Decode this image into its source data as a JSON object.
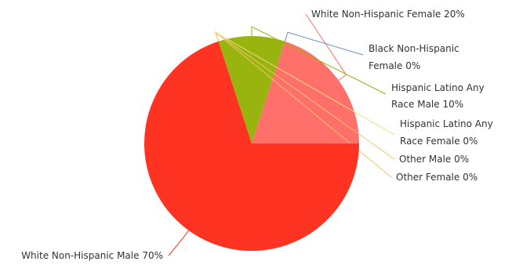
{
  "chart_data": {
    "type": "pie",
    "title": "",
    "slices": [
      {
        "label": "White Non-Hispanic Female 20%",
        "value": 20,
        "color": "#ff706a"
      },
      {
        "label": "Black Non-Hispanic Female 0%",
        "value": 0,
        "color": "#6a8fc7"
      },
      {
        "label": "Hispanic Latino Any Race Male 10%",
        "value": 10,
        "color": "#99b40e"
      },
      {
        "label": "Hispanic Latino Any Race Female 0%",
        "value": 0,
        "color": "#e9e07a"
      },
      {
        "label": "Other Male 0%",
        "value": 0,
        "color": "#f6c36a"
      },
      {
        "label": "Other Female 0%",
        "value": 0,
        "color": "#f6c36a"
      },
      {
        "label": "White Non-Hispanic Male 70%",
        "value": 70,
        "color": "#ff3322"
      }
    ]
  }
}
